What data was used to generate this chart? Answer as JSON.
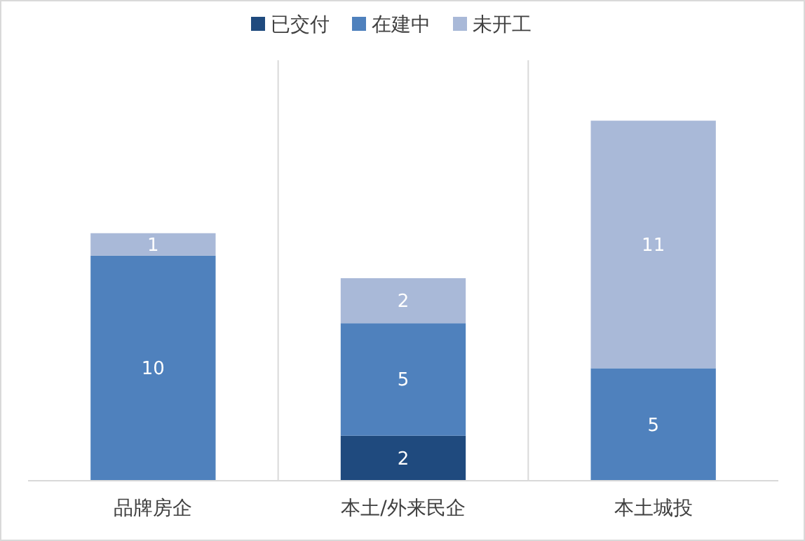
{
  "chart_data": {
    "type": "bar",
    "stacked": true,
    "categories": [
      "品牌房企",
      "本土/外来民企",
      "本土城投"
    ],
    "series": [
      {
        "name": "已交付",
        "color": "#1f4a7e",
        "values": [
          null,
          2,
          null
        ]
      },
      {
        "name": "在建中",
        "color": "#4f81bd",
        "values": [
          10,
          5,
          5
        ]
      },
      {
        "name": "未开工",
        "color": "#a9b9d8",
        "values": [
          1,
          2,
          11
        ]
      }
    ],
    "data_labels": true,
    "legend": "top",
    "grid": "x"
  }
}
